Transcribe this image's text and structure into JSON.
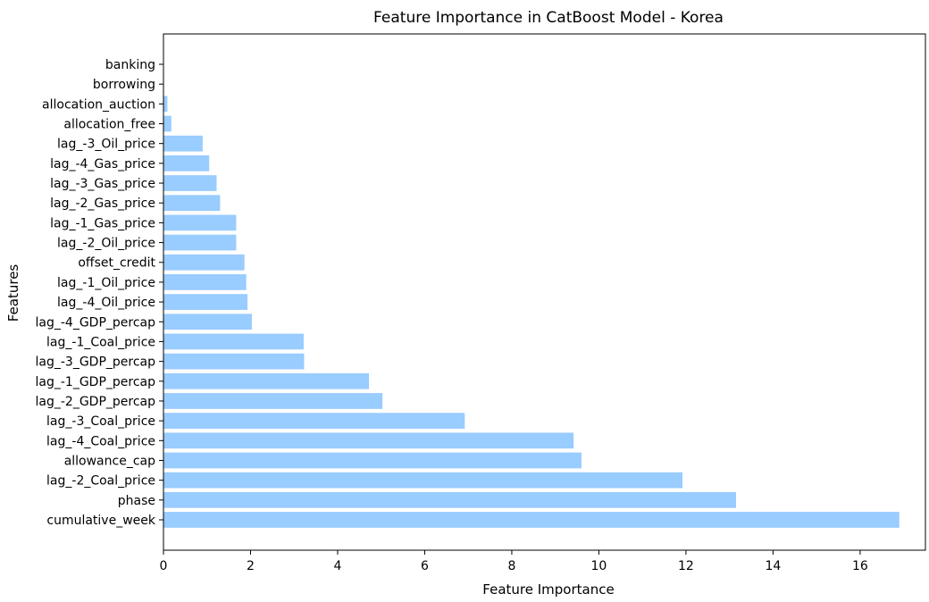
{
  "chart_data": {
    "type": "bar",
    "orientation": "horizontal",
    "title": "Feature Importance in CatBoost Model - Korea",
    "xlabel": "Feature Importance",
    "ylabel": "Features",
    "xlim": [
      0,
      17.5
    ],
    "xticks": [
      0,
      2,
      4,
      6,
      8,
      10,
      12,
      14,
      16
    ],
    "grid": false,
    "bar_color": "#99ccff",
    "categories": [
      "cumulative_week",
      "phase",
      "lag_-2_Coal_price",
      "allowance_cap",
      "lag_-4_Coal_price",
      "lag_-3_Coal_price",
      "lag_-2_GDP_percap",
      "lag_-1_GDP_percap",
      "lag_-3_GDP_percap",
      "lag_-1_Coal_price",
      "lag_-4_GDP_percap",
      "lag_-4_Oil_price",
      "lag_-1_Oil_price",
      "offset_credit",
      "lag_-2_Oil_price",
      "lag_-1_Gas_price",
      "lag_-2_Gas_price",
      "lag_-3_Gas_price",
      "lag_-4_Gas_price",
      "lag_-3_Oil_price",
      "allocation_free",
      "allocation_auction",
      "borrowing",
      "banking"
    ],
    "values": [
      16.9,
      13.15,
      11.92,
      9.6,
      9.42,
      6.92,
      5.03,
      4.72,
      3.23,
      3.22,
      2.03,
      1.93,
      1.9,
      1.86,
      1.67,
      1.67,
      1.3,
      1.22,
      1.05,
      0.9,
      0.18,
      0.09,
      0.0,
      0.0
    ]
  }
}
